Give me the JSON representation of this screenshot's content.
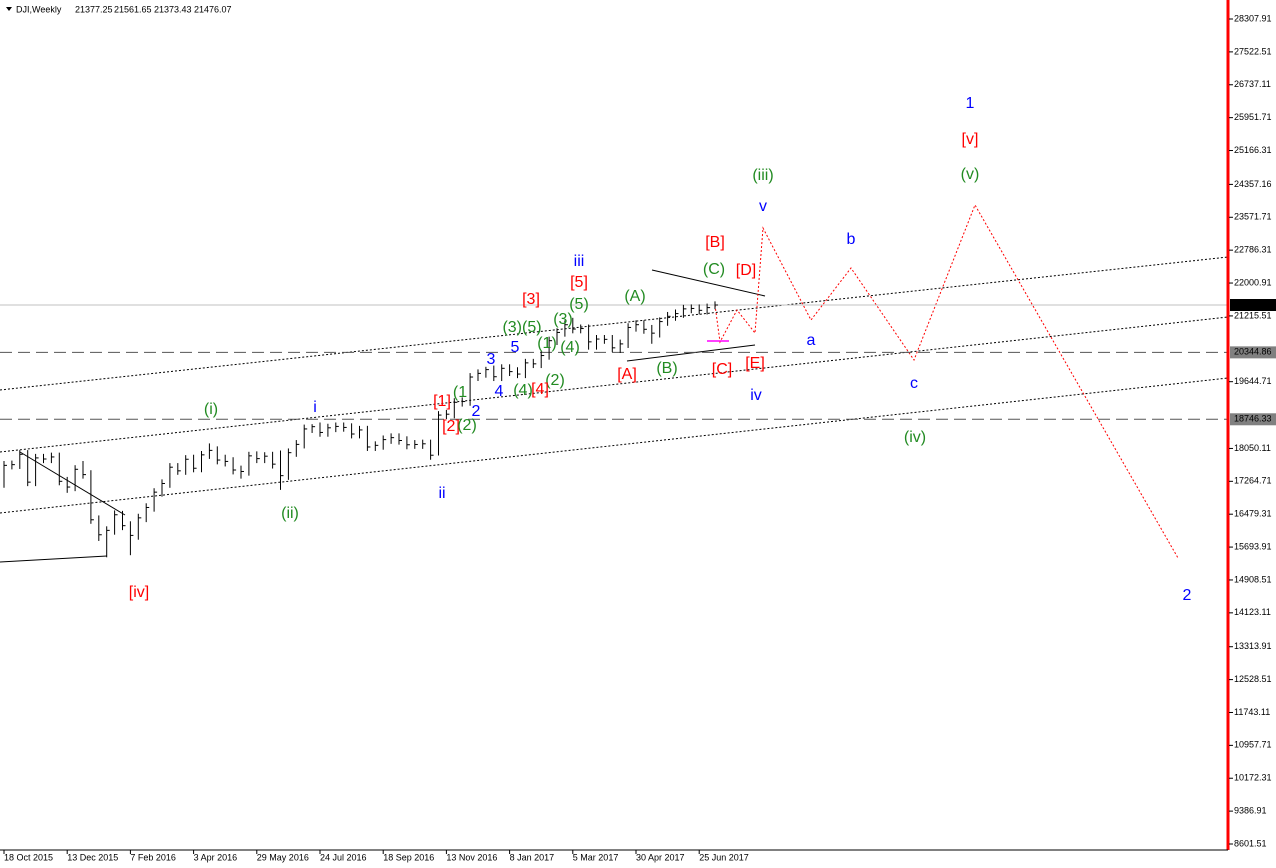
{
  "chart_data": {
    "type": "ohlc",
    "symbol": "DJI,Weekly",
    "ohlc": {
      "open": 21377.25,
      "high": 21561.65,
      "low": 21373.43,
      "close": 21476.07
    },
    "x_tick_labels": [
      "18 Oct 2015",
      "13 Dec 2015",
      "7 Feb 2016",
      "3 Apr 2016",
      "29 May 2016",
      "24 Jul 2016",
      "18 Sep 2016",
      "13 Nov 2016",
      "8 Jan 2017",
      "5 Mar 2017",
      "30 Apr 2017",
      "25 Jun 2017"
    ],
    "ylim": [
      8601.51,
      28307.91
    ],
    "yticks": [
      28307.91,
      27522.51,
      26737.11,
      25951.71,
      25166.31,
      24357.16,
      23571.71,
      22786.31,
      22000.91,
      21215.51,
      19644.71,
      18050.11,
      17264.71,
      16479.31,
      15693.91,
      14908.51,
      14123.11,
      13313.91,
      12528.51,
      11743.11,
      10957.71,
      10172.31,
      9386.91,
      8601.51
    ],
    "levels": [
      20344.86,
      18746.33
    ],
    "bar_color": "#000000",
    "axis_color": "#ff0000",
    "close": [
      17646,
      17663,
      17910,
      17245,
      17824,
      17798,
      17847,
      17265,
      17128,
      17552,
      17425,
      16346,
      15988,
      16093,
      16466,
      16205,
      15973,
      16392,
      16640,
      17006,
      17213,
      17602,
      17515,
      17792,
      17577,
      17897,
      18004,
      17773,
      17740,
      17535,
      17500,
      17873,
      17807,
      17865,
      17675,
      17400,
      17949,
      18147,
      18516,
      18570,
      18432,
      18543,
      18576,
      18552,
      18395,
      18492,
      18085,
      18124,
      18261,
      18308,
      18240,
      18138,
      18145,
      18161,
      17888,
      18847,
      18868,
      19152,
      19170,
      19756,
      19843,
      19933,
      19763,
      19964,
      19885,
      19827,
      20094,
      20071,
      20269,
      20624,
      20821,
      21005,
      20902,
      20914,
      20596,
      20663,
      20656,
      20453,
      20547,
      20940,
      21006,
      20896,
      20804,
      21080,
      21206,
      21271,
      21384,
      21394,
      21349,
      21414,
      21476.07
    ],
    "high": [
      17750,
      17760,
      18010,
      18010,
      17920,
      17920,
      17950,
      17950,
      17370,
      17650,
      17750,
      17530,
      16450,
      16190,
      16570,
      16560,
      16310,
      16490,
      16740,
      17100,
      17310,
      17700,
      17700,
      17890,
      17900,
      17990,
      18170,
      18100,
      17900,
      17840,
      17640,
      17970,
      17980,
      17960,
      17970,
      18000,
      18050,
      18250,
      18620,
      18630,
      18670,
      18640,
      18670,
      18670,
      18650,
      18590,
      18590,
      18220,
      18360,
      18410,
      18410,
      18340,
      18250,
      18260,
      18260,
      18940,
      18970,
      19250,
      19270,
      19850,
      19940,
      20000,
      20030,
      20060,
      20060,
      19990,
      20190,
      20190,
      20370,
      20720,
      20920,
      21110,
      21170,
      21010,
      21010,
      20760,
      20760,
      20760,
      20650,
      21040,
      21110,
      21110,
      21000,
      21180,
      21310,
      21370,
      21480,
      21490,
      21490,
      21510,
      21561.65
    ],
    "low": [
      17110,
      17550,
      17560,
      17150,
      17150,
      17700,
      17700,
      17170,
      16990,
      17030,
      17330,
      16250,
      15840,
      15450,
      15990,
      16100,
      15500,
      15870,
      16290,
      16540,
      16900,
      17110,
      17420,
      17420,
      17480,
      17480,
      17800,
      17670,
      17620,
      17430,
      17330,
      17400,
      17700,
      17700,
      17570,
      17060,
      17300,
      17850,
      18050,
      18420,
      18330,
      18330,
      18440,
      18450,
      18290,
      18290,
      17990,
      17990,
      18020,
      18160,
      18140,
      18030,
      18040,
      18040,
      17780,
      17880,
      18750,
      18770,
      19050,
      19070,
      19660,
      19740,
      19660,
      19660,
      19780,
      19730,
      19730,
      19970,
      19970,
      20170,
      20520,
      20720,
      20800,
      20800,
      20410,
      20410,
      20550,
      20350,
      20330,
      20450,
      20840,
      20790,
      20550,
      20700,
      20980,
      21100,
      21170,
      21280,
      21250,
      21250,
      21373.43
    ],
    "annotations": [
      {
        "text": "1",
        "color": "#0000ff"
      },
      {
        "text": "[v]",
        "color": "#ff0000"
      },
      {
        "text": "(v)",
        "color": "#228b22"
      },
      {
        "text": "(iii)",
        "color": "#228b22"
      },
      {
        "text": "v",
        "color": "#0000ff"
      },
      {
        "text": "[B]",
        "color": "#ff0000"
      },
      {
        "text": "b",
        "color": "#0000ff"
      },
      {
        "text": "(C)",
        "color": "#228b22"
      },
      {
        "text": "[D]",
        "color": "#ff0000"
      },
      {
        "text": "iii",
        "color": "#0000ff"
      },
      {
        "text": "[5]",
        "color": "#ff0000"
      },
      {
        "text": "[3]",
        "color": "#ff0000"
      },
      {
        "text": "(5)",
        "color": "#228b22"
      },
      {
        "text": "(A)",
        "color": "#228b22"
      },
      {
        "text": "(3)",
        "color": "#228b22"
      },
      {
        "text": "(3)(5)",
        "color": "#228b22"
      },
      {
        "text": "(1)",
        "color": "#228b22"
      },
      {
        "text": "(4)",
        "color": "#228b22"
      },
      {
        "text": "5",
        "color": "#0000ff"
      },
      {
        "text": "3",
        "color": "#0000ff"
      },
      {
        "text": "a",
        "color": "#0000ff"
      },
      {
        "text": "[E]",
        "color": "#ff0000"
      },
      {
        "text": "[A]",
        "color": "#ff0000"
      },
      {
        "text": "(B)",
        "color": "#228b22"
      },
      {
        "text": "[C]",
        "color": "#ff0000"
      },
      {
        "text": "(2)",
        "color": "#228b22"
      },
      {
        "text": "4",
        "color": "#0000ff"
      },
      {
        "text": "(4)",
        "color": "#228b22"
      },
      {
        "text": "[4]",
        "color": "#ff0000"
      },
      {
        "text": "c",
        "color": "#0000ff"
      },
      {
        "text": "iv",
        "color": "#0000ff"
      },
      {
        "text": "(1",
        "color": "#228b22"
      },
      {
        "text": "[1]",
        "color": "#ff0000"
      },
      {
        "text": "2",
        "color": "#0000ff"
      },
      {
        "text": "(i)",
        "color": "#228b22"
      },
      {
        "text": "i",
        "color": "#0000ff"
      },
      {
        "text": "[2]",
        "color": "#ff0000"
      },
      {
        "text": "(2)",
        "color": "#228b22"
      },
      {
        "text": "(iv)",
        "color": "#228b22"
      },
      {
        "text": "ii",
        "color": "#0000ff"
      },
      {
        "text": "(ii)",
        "color": "#228b22"
      },
      {
        "text": "[iv]",
        "color": "#ff0000"
      },
      {
        "text": "2",
        "color": "#0000ff"
      }
    ]
  }
}
